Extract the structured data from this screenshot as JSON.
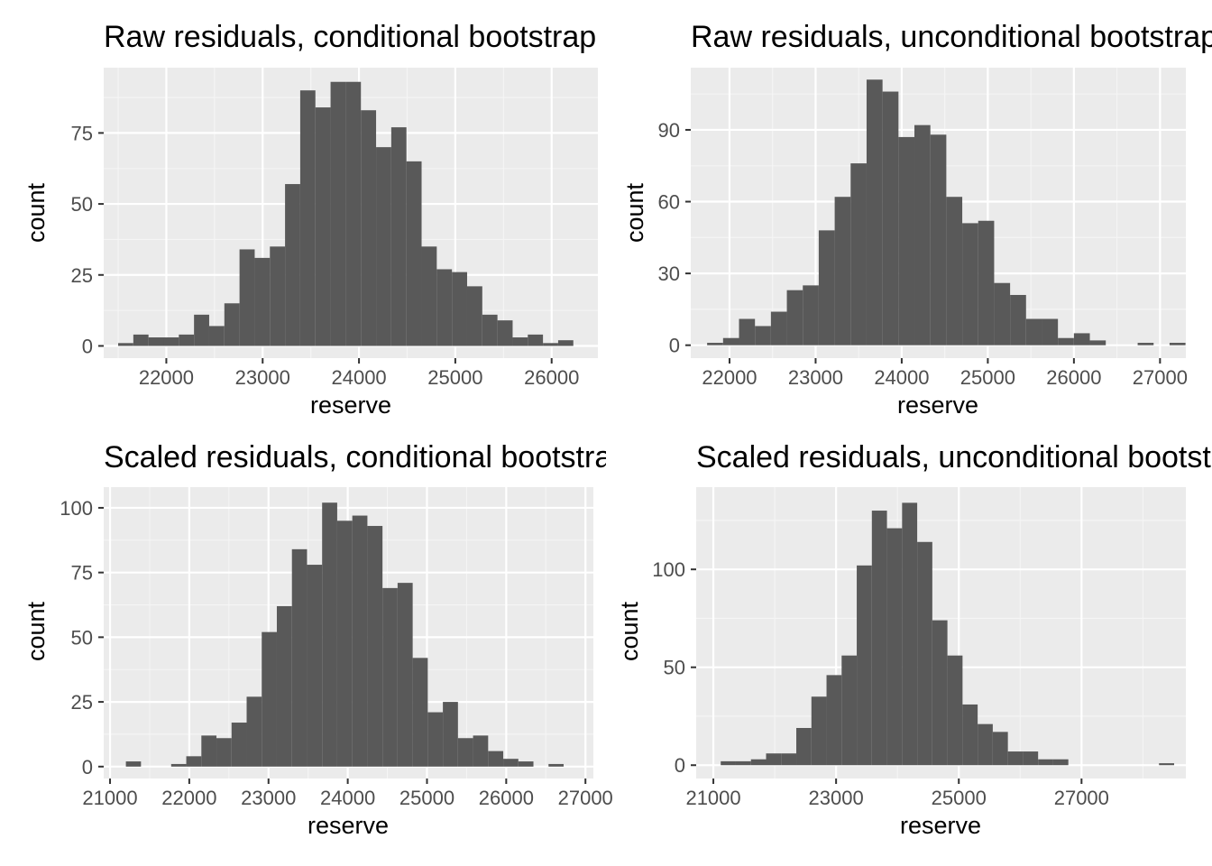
{
  "colors": {
    "panel_background": "#ebebeb",
    "grid_major": "#ffffff",
    "grid_minor": "#f5f5f5",
    "bar_fill": "#595959",
    "tick_mark": "#333333",
    "tick_label": "#4d4d4d"
  },
  "chart_data": [
    {
      "type": "bar",
      "title": "Raw residuals, conditional bootstrap",
      "xlabel": "reserve",
      "ylabel": "count",
      "grid": true,
      "xlim": [
        21350,
        26480
      ],
      "ylim": [
        -4.3,
        98
      ],
      "xticks": [
        22000,
        23000,
        24000,
        25000,
        26000
      ],
      "yticks": [
        0,
        25,
        50,
        75
      ],
      "bins": {
        "start": 21500,
        "width": 157.5,
        "counts": [
          1,
          4,
          3,
          3,
          4,
          11,
          7,
          15,
          34,
          31,
          35,
          57,
          90,
          84,
          93,
          93,
          83,
          70,
          77,
          65,
          35,
          27,
          26,
          21,
          11,
          9,
          3,
          4,
          1,
          2
        ]
      }
    },
    {
      "type": "bar",
      "title": "Raw residuals, unconditional bootstrap",
      "xlabel": "reserve",
      "ylabel": "count",
      "grid": true,
      "xlim": [
        21550,
        27300
      ],
      "ylim": [
        -5.4,
        116
      ],
      "xticks": [
        22000,
        23000,
        24000,
        25000,
        26000,
        27000
      ],
      "yticks": [
        0,
        30,
        60,
        90
      ],
      "bins": {
        "start": 21740,
        "width": 185.2,
        "counts": [
          1,
          3,
          11,
          8,
          14,
          23,
          25,
          48,
          62,
          76,
          111,
          106,
          87,
          92,
          88,
          62,
          51,
          52,
          26,
          21,
          11,
          11,
          3,
          5,
          2,
          0,
          0,
          1,
          0,
          1
        ]
      }
    },
    {
      "type": "bar",
      "title": "Scaled residuals, conditional bootstrap",
      "xlabel": "reserve",
      "ylabel": "count",
      "grid": true,
      "xlim": [
        20920,
        27100
      ],
      "ylim": [
        -4.6,
        108
      ],
      "xticks": [
        21000,
        22000,
        23000,
        24000,
        25000,
        26000,
        27000
      ],
      "yticks": [
        0,
        25,
        50,
        75,
        100
      ],
      "bins": {
        "start": 21200,
        "width": 190.5,
        "counts": [
          2,
          0,
          0,
          1,
          4,
          12,
          11,
          17,
          27,
          52,
          62,
          84,
          78,
          102,
          95,
          97,
          93,
          69,
          71,
          42,
          21,
          25,
          11,
          12,
          6,
          3,
          2,
          0,
          1,
          0
        ]
      }
    },
    {
      "type": "bar",
      "title": "Scaled residuals, unconditional bootstrap",
      "xlabel": "reserve",
      "ylabel": "count",
      "grid": true,
      "xlim": [
        20720,
        28700
      ],
      "ylim": [
        -6.8,
        142
      ],
      "xticks": [
        21000,
        23000,
        25000,
        27000
      ],
      "yticks": [
        0,
        50,
        100
      ],
      "bins": {
        "start": 21120,
        "width": 246.3,
        "counts": [
          2,
          2,
          3,
          6,
          6,
          19,
          35,
          46,
          56,
          102,
          130,
          121,
          134,
          114,
          74,
          56,
          31,
          21,
          17,
          7,
          7,
          3,
          3,
          0,
          0,
          0,
          0,
          0,
          0,
          1
        ]
      }
    }
  ]
}
